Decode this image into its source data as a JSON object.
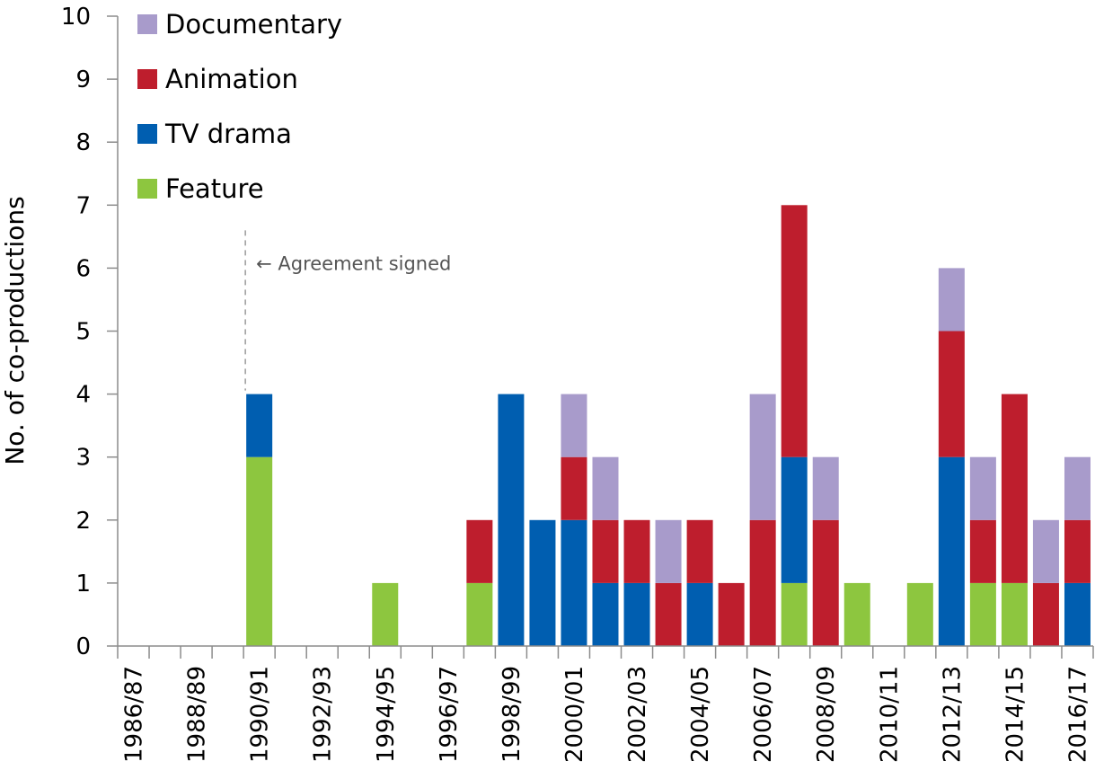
{
  "chart_data": {
    "type": "bar",
    "stacked": true,
    "title": "",
    "xlabel": "",
    "ylabel": "No. of co-productions",
    "ylim": [
      0,
      10
    ],
    "yticks": [
      "0",
      "1",
      "2",
      "3",
      "4",
      "5",
      "6",
      "7",
      "8",
      "9",
      "10"
    ],
    "categories": [
      "1986/87",
      "1987/88",
      "1988/89",
      "1989/90",
      "1990/91",
      "1991/92",
      "1992/93",
      "1993/94",
      "1994/95",
      "1995/96",
      "1996/97",
      "1997/98",
      "1998/99",
      "1999/00",
      "2000/01",
      "2001/02",
      "2002/03",
      "2003/04",
      "2004/05",
      "2005/06",
      "2006/07",
      "2007/08",
      "2008/09",
      "2009/10",
      "2010/11",
      "2011/12",
      "2012/13",
      "2013/14",
      "2014/15",
      "2015/16",
      "2016/17"
    ],
    "tick_labels": [
      "1986/87",
      "1988/89",
      "1990/91",
      "1992/93",
      "1994/95",
      "1996/97",
      "1998/99",
      "2000/01",
      "2002/03",
      "2004/05",
      "2006/07",
      "2008/09",
      "2010/11",
      "2012/13",
      "2014/15",
      "2016/17"
    ],
    "series": [
      {
        "name": "Feature",
        "color": "#8dc63f",
        "values": [
          0,
          0,
          0,
          0,
          3,
          0,
          0,
          0,
          1,
          0,
          0,
          1,
          0,
          0,
          0,
          0,
          0,
          0,
          0,
          0,
          0,
          1,
          0,
          1,
          0,
          1,
          0,
          1,
          1,
          0,
          0
        ]
      },
      {
        "name": "TV drama",
        "color": "#005eb0",
        "values": [
          0,
          0,
          0,
          0,
          1,
          0,
          0,
          0,
          0,
          0,
          0,
          0,
          4,
          2,
          2,
          1,
          1,
          0,
          1,
          0,
          0,
          2,
          0,
          0,
          0,
          0,
          3,
          0,
          0,
          0,
          1
        ]
      },
      {
        "name": "Animation",
        "color": "#be1e2d",
        "values": [
          0,
          0,
          0,
          0,
          0,
          0,
          0,
          0,
          0,
          0,
          0,
          1,
          0,
          0,
          1,
          1,
          1,
          1,
          1,
          1,
          2,
          4,
          2,
          0,
          0,
          0,
          2,
          1,
          3,
          1,
          1
        ]
      },
      {
        "name": "Documentary",
        "color": "#a89bcb",
        "values": [
          0,
          0,
          0,
          0,
          0,
          0,
          0,
          0,
          0,
          0,
          0,
          0,
          0,
          0,
          1,
          1,
          0,
          1,
          0,
          0,
          2,
          0,
          1,
          0,
          0,
          0,
          1,
          1,
          0,
          1,
          1
        ]
      }
    ],
    "legend": {
      "placement": "top-left",
      "order": [
        "Documentary",
        "Animation",
        "TV drama",
        "Feature"
      ]
    },
    "annotations": [
      {
        "text": "← Agreement signed",
        "category": "1990/91",
        "y": 6.6,
        "style": "dashed-vertical-line"
      }
    ],
    "grid": false
  }
}
